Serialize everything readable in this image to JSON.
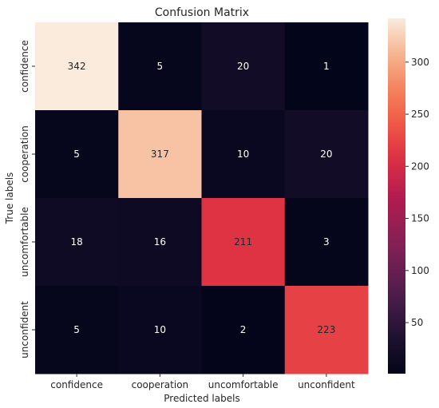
{
  "chart_data": {
    "type": "heatmap",
    "title": "Confusion Matrix",
    "xlabel": "Predicted labels",
    "ylabel": "True labels",
    "x_categories": [
      "confidence",
      "cooperation",
      "uncomfortable",
      "unconfident"
    ],
    "y_categories": [
      "confidence",
      "cooperation",
      "uncomfortable",
      "unconfident"
    ],
    "values": [
      [
        342,
        5,
        20,
        1
      ],
      [
        5,
        317,
        10,
        20
      ],
      [
        18,
        16,
        211,
        3
      ],
      [
        5,
        10,
        2,
        223
      ]
    ],
    "value_range": [
      1,
      342
    ],
    "colormap": "rocket",
    "colorbar": {
      "ticks": [
        50,
        100,
        150,
        200,
        250,
        300
      ],
      "tick_labels": [
        "50",
        "100",
        "150",
        "200",
        "250",
        "300"
      ]
    },
    "annotations": true,
    "annotation_colors": {
      "light": "#ffffff",
      "dark": "#262626"
    }
  }
}
